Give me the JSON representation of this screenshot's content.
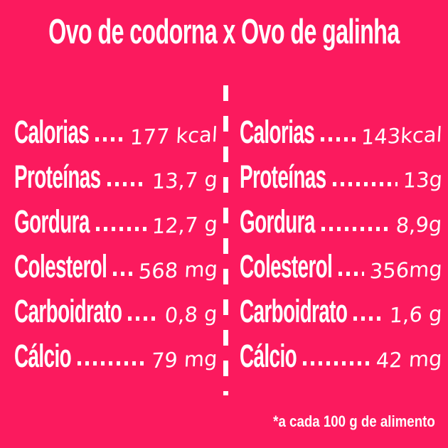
{
  "title": "Ovo de codorna x Ovo de galinha",
  "footnote": "*a cada 100 g de alimento",
  "colors": {
    "background": "#FB1A5E",
    "text": "#FFFFFF"
  },
  "chart_data": {
    "type": "table",
    "title": "Ovo de codorna x Ovo de galinha",
    "footnote": "*a cada 100 g de alimento",
    "row_labels": [
      "Calorias",
      "Proteínas",
      "Gordura",
      "Colesterol",
      "Carboidrato",
      "Cálcio"
    ],
    "series": [
      {
        "name": "Ovo de codorna",
        "values": [
          "177 kcal",
          "13,7 g",
          "12,7 g",
          "568 mg",
          "0,8 g",
          "79 mg"
        ],
        "values_numeric": [
          177,
          13.7,
          12.7,
          568,
          0.8,
          79
        ]
      },
      {
        "name": "Ovo de galinha",
        "values": [
          "143kcal",
          "13g",
          "8,9g",
          "356mg",
          "1,6 g",
          "42 mg"
        ],
        "values_numeric": [
          143,
          13,
          8.9,
          356,
          1.6,
          42
        ]
      }
    ],
    "units": [
      "kcal",
      "g",
      "g",
      "mg",
      "g",
      "mg"
    ],
    "basis": "per 100 g of food"
  }
}
